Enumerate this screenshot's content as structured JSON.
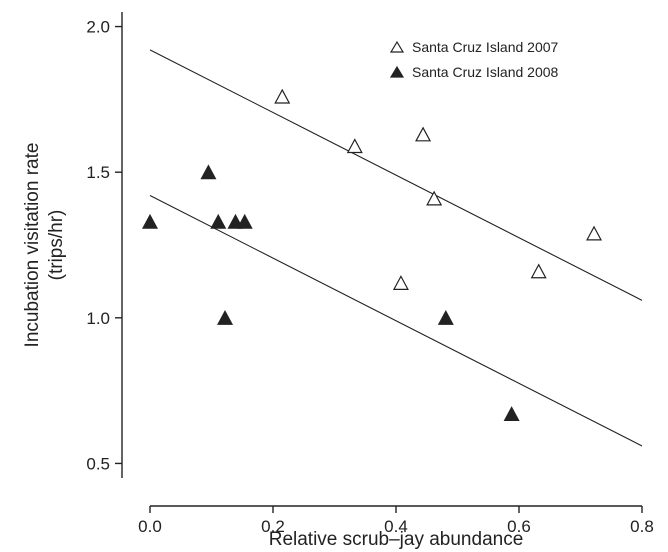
{
  "chart_data": {
    "type": "scatter",
    "title": "",
    "xlabel": "Relative scrub–jay abundance",
    "ylabel": [
      "Incubation visitation rate",
      "(trips/hr)"
    ],
    "xlim": [
      0.0,
      0.8
    ],
    "ylim": [
      0.45,
      2.05
    ],
    "x_ticks": [
      0.0,
      0.2,
      0.4,
      0.6,
      0.8
    ],
    "x_tick_labels": [
      "0.0",
      "0.2",
      "0.4",
      "0.6",
      "0.8"
    ],
    "y_ticks": [
      0.5,
      1.0,
      1.5,
      2.0
    ],
    "y_tick_labels": [
      "0.5",
      "1.0",
      "1.5",
      "2.0"
    ],
    "grid": false,
    "legend_position": "top-right",
    "series": [
      {
        "name": "Santa Cruz Island 2007",
        "marker": "open-triangle",
        "color": "#222222",
        "points": [
          {
            "x": 0.215,
            "y": 1.76
          },
          {
            "x": 0.333,
            "y": 1.59
          },
          {
            "x": 0.408,
            "y": 1.12
          },
          {
            "x": 0.444,
            "y": 1.63
          },
          {
            "x": 0.462,
            "y": 1.41
          },
          {
            "x": 0.632,
            "y": 1.16
          },
          {
            "x": 0.722,
            "y": 1.29
          }
        ],
        "fit_line": {
          "x": [
            0.0,
            0.8
          ],
          "y": [
            1.92,
            1.06
          ]
        }
      },
      {
        "name": "Santa Cruz Island 2008",
        "marker": "filled-triangle",
        "color": "#222222",
        "points": [
          {
            "x": 0.0,
            "y": 1.33
          },
          {
            "x": 0.095,
            "y": 1.5
          },
          {
            "x": 0.111,
            "y": 1.33
          },
          {
            "x": 0.122,
            "y": 1.0
          },
          {
            "x": 0.139,
            "y": 1.33
          },
          {
            "x": 0.154,
            "y": 1.33
          },
          {
            "x": 0.481,
            "y": 1.0
          },
          {
            "x": 0.588,
            "y": 0.67
          }
        ],
        "fit_line": {
          "x": [
            0.0,
            0.8
          ],
          "y": [
            1.42,
            0.56
          ]
        }
      }
    ]
  }
}
